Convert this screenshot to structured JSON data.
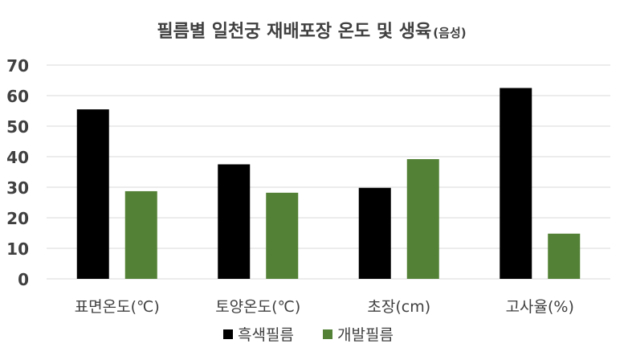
{
  "chart_data": {
    "type": "bar",
    "title": "필름별 일천궁 재배포장 온도 및 생육",
    "title_suffix": "(음성)",
    "categories": [
      "표면온도(℃)",
      "토양온도(℃)",
      "초장(cm)",
      "고사율(%)"
    ],
    "series": [
      {
        "name": "흑색필름",
        "color": "#000000",
        "values": [
          55.5,
          37.5,
          29.8,
          62.5
        ]
      },
      {
        "name": "개발필름",
        "color": "#538135",
        "values": [
          28.7,
          28.2,
          39.2,
          14.8
        ]
      }
    ],
    "ylim": [
      0,
      70
    ],
    "yticks": [
      "0",
      "10",
      "20",
      "30",
      "40",
      "50",
      "60",
      "70"
    ],
    "grid": true,
    "legend_position": "bottom-center"
  }
}
